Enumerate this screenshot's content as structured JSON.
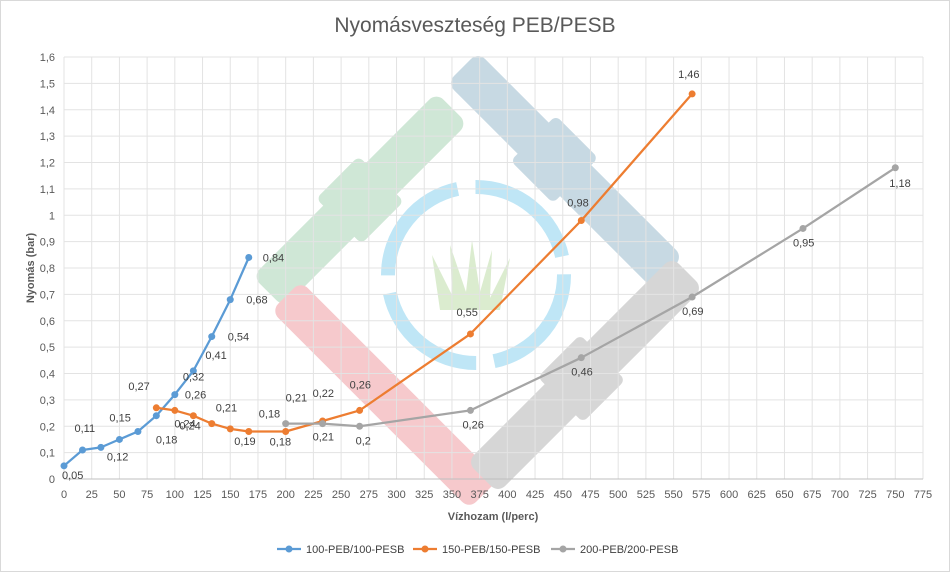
{
  "chart_data": {
    "type": "line",
    "title": "Nyomásveszteség PEB/PESB",
    "xlabel": "Vízhozam (l/perc)",
    "ylabel": "Nyomás (bar)",
    "xlim": [
      0,
      775
    ],
    "ylim": [
      0,
      1.6
    ],
    "x_ticks": [
      "0",
      "25",
      "50",
      "75",
      "100",
      "125",
      "150",
      "175",
      "200",
      "225",
      "250",
      "275",
      "300",
      "325",
      "350",
      "375",
      "400",
      "425",
      "450",
      "475",
      "500",
      "525",
      "550",
      "575",
      "600",
      "625",
      "650",
      "675",
      "700",
      "725",
      "750",
      "775"
    ],
    "y_ticks": [
      "0",
      "0,1",
      "0,2",
      "0,3",
      "0,4",
      "0,5",
      "0,6",
      "0,7",
      "0,8",
      "0,9",
      "1",
      "1,1",
      "1,2",
      "1,3",
      "1,4",
      "1,5",
      "1,6"
    ],
    "grid": true,
    "legend_position": "bottom",
    "series": [
      {
        "name": "100-PEB/100-PESB",
        "color": "#5b9bd5",
        "points": [
          {
            "x": 0,
            "y": 0.05,
            "label": "0,05"
          },
          {
            "x": 16.7,
            "y": 0.11,
            "label": "0,11"
          },
          {
            "x": 33.3,
            "y": 0.12,
            "label": "0,12"
          },
          {
            "x": 50,
            "y": 0.15,
            "label": "0,15"
          },
          {
            "x": 66.7,
            "y": 0.18,
            "label": "0,18"
          },
          {
            "x": 83.3,
            "y": 0.24,
            "label": "0,24"
          },
          {
            "x": 100,
            "y": 0.32,
            "label": "0,32"
          },
          {
            "x": 116.7,
            "y": 0.41,
            "label": "0,41"
          },
          {
            "x": 133.3,
            "y": 0.54,
            "label": "0,54"
          },
          {
            "x": 150,
            "y": 0.68,
            "label": "0,68"
          },
          {
            "x": 166.7,
            "y": 0.84,
            "label": "0,84"
          }
        ]
      },
      {
        "name": "150-PEB/150-PESB",
        "color": "#ed7d31",
        "points": [
          {
            "x": 83.3,
            "y": 0.27,
            "label": "0,27"
          },
          {
            "x": 100,
            "y": 0.26,
            "label": "0,26"
          },
          {
            "x": 116.7,
            "y": 0.24,
            "label": "0,24"
          },
          {
            "x": 133.3,
            "y": 0.21,
            "label": "0,21"
          },
          {
            "x": 150,
            "y": 0.19,
            "label": "0,19"
          },
          {
            "x": 166.7,
            "y": 0.18,
            "label": "0,18"
          },
          {
            "x": 200,
            "y": 0.18,
            "label": "0,18"
          },
          {
            "x": 233.3,
            "y": 0.22,
            "label": "0,22"
          },
          {
            "x": 266.7,
            "y": 0.26,
            "label": "0,26"
          },
          {
            "x": 366.7,
            "y": 0.55,
            "label": "0,55"
          },
          {
            "x": 466.7,
            "y": 0.98,
            "label": "0,98"
          },
          {
            "x": 566.7,
            "y": 1.46,
            "label": "1,46"
          }
        ]
      },
      {
        "name": "200-PEB/200-PESB",
        "color": "#a5a5a5",
        "points": [
          {
            "x": 200,
            "y": 0.21,
            "label": "0,21"
          },
          {
            "x": 233.3,
            "y": 0.21,
            "label": "0,21"
          },
          {
            "x": 266.7,
            "y": 0.2,
            "label": "0,2"
          },
          {
            "x": 366.7,
            "y": 0.26,
            "label": "0,26"
          },
          {
            "x": 466.7,
            "y": 0.46,
            "label": "0,46"
          },
          {
            "x": 566.7,
            "y": 0.69,
            "label": "0,69"
          },
          {
            "x": 666.7,
            "y": 0.95,
            "label": "0,95"
          },
          {
            "x": 750,
            "y": 1.18,
            "label": "1,18"
          }
        ]
      }
    ]
  }
}
